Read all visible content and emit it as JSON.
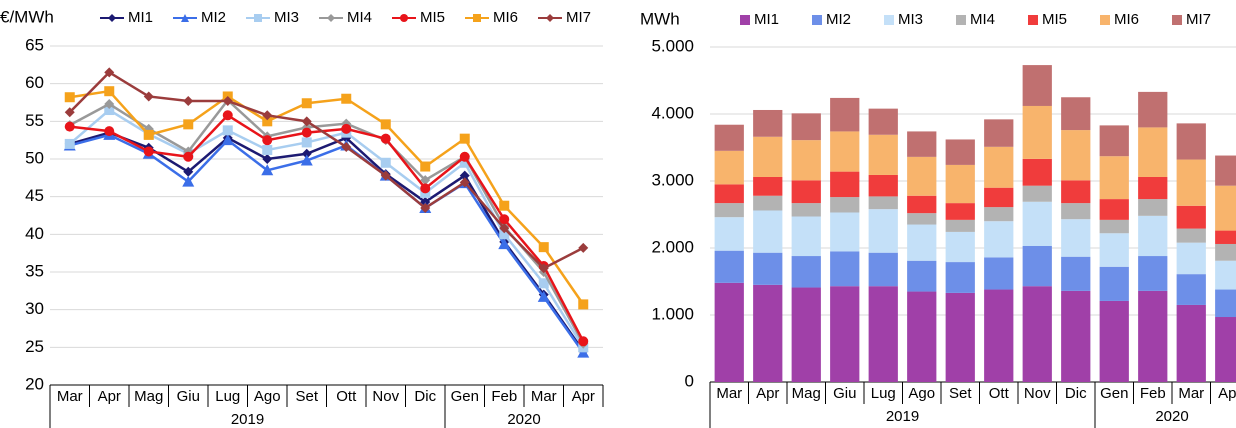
{
  "chart_data": [
    {
      "type": "line",
      "y_label": "€/MWh",
      "categories": [
        "Mar",
        "Apr",
        "Mag",
        "Giu",
        "Lug",
        "Ago",
        "Set",
        "Ott",
        "Nov",
        "Dic",
        "Gen",
        "Feb",
        "Mar",
        "Apr"
      ],
      "groups": [
        {
          "label": "2019",
          "count": 10
        },
        {
          "label": "2020",
          "count": 4
        }
      ],
      "ylim": [
        20,
        65
      ],
      "yticks": [
        20,
        25,
        30,
        35,
        40,
        45,
        50,
        55,
        60,
        65
      ],
      "grid": true,
      "series": [
        {
          "name": "MI1",
          "color": "#1c1a72",
          "marker": "diamond",
          "values": [
            52,
            53.5,
            51.5,
            48.3,
            52.8,
            50,
            50.7,
            52.8,
            48,
            44.3,
            47.8,
            39,
            32,
            24.5
          ]
        },
        {
          "name": "MI2",
          "color": "#3b6ee8",
          "marker": "triangle",
          "values": [
            51.8,
            53.2,
            50.7,
            47,
            52.5,
            48.5,
            49.8,
            51.8,
            47.8,
            43.5,
            46.8,
            38.7,
            31.7,
            24.3
          ]
        },
        {
          "name": "MI3",
          "color": "#a8cdf0",
          "marker": "square",
          "values": [
            52,
            56.5,
            53.3,
            50.7,
            53.8,
            51.2,
            52.2,
            53.5,
            49.5,
            45.5,
            49.5,
            40,
            33.5,
            25
          ]
        },
        {
          "name": "MI4",
          "color": "#999999",
          "marker": "diamond",
          "values": [
            54.5,
            57.3,
            54,
            51,
            57.8,
            53,
            54.2,
            54.7,
            52.5,
            47.2,
            50.3,
            41,
            35,
            25.5
          ]
        },
        {
          "name": "MI5",
          "color": "#e8141a",
          "marker": "circle",
          "values": [
            54.3,
            53.7,
            51,
            50.3,
            55.8,
            52.5,
            53.5,
            54,
            52.7,
            46.1,
            50.3,
            42,
            35.8,
            25.8
          ]
        },
        {
          "name": "MI6",
          "color": "#f5a21b",
          "marker": "square",
          "values": [
            58.2,
            59,
            53.2,
            54.6,
            58.3,
            55,
            57.4,
            58,
            54.6,
            49,
            52.7,
            43.8,
            38.3,
            30.7
          ]
        },
        {
          "name": "MI7",
          "color": "#9b3c3c",
          "marker": "diamond",
          "values": [
            56.2,
            61.5,
            58.3,
            57.7,
            57.7,
            55.8,
            55,
            51.6,
            47.8,
            43.5,
            46.9,
            40.8,
            35.5,
            38.2
          ]
        }
      ]
    },
    {
      "type": "bar",
      "stacked": true,
      "y_label": "MWh",
      "categories": [
        "Mar",
        "Apr",
        "Mag",
        "Giu",
        "Lug",
        "Ago",
        "Set",
        "Ott",
        "Nov",
        "Dic",
        "Gen",
        "Feb",
        "Mar",
        "Apr"
      ],
      "groups": [
        {
          "label": "2019",
          "count": 10
        },
        {
          "label": "2020",
          "count": 4
        }
      ],
      "ylim": [
        0,
        5000
      ],
      "yticks": [
        0,
        {
          "value": 1000,
          "label": "1.000"
        },
        {
          "value": 2000,
          "label": "2.000"
        },
        {
          "value": 3000,
          "label": "3.000"
        },
        {
          "value": 4000,
          "label": "4.000"
        },
        {
          "value": 5000,
          "label": "5.000"
        }
      ],
      "grid": true,
      "series": [
        {
          "name": "MI1",
          "color": "#a040a8",
          "values": [
            1480,
            1450,
            1410,
            1430,
            1430,
            1350,
            1330,
            1380,
            1430,
            1360,
            1210,
            1360,
            1150,
            970
          ]
        },
        {
          "name": "MI2",
          "color": "#6d8fe8",
          "values": [
            480,
            480,
            470,
            520,
            500,
            460,
            460,
            480,
            600,
            510,
            510,
            520,
            460,
            410
          ]
        },
        {
          "name": "MI3",
          "color": "#c4e0f8",
          "values": [
            500,
            630,
            590,
            580,
            650,
            540,
            450,
            540,
            660,
            560,
            500,
            600,
            470,
            430
          ]
        },
        {
          "name": "MI4",
          "color": "#b3b3b3",
          "values": [
            210,
            220,
            200,
            230,
            190,
            170,
            180,
            210,
            240,
            240,
            200,
            250,
            210,
            250
          ]
        },
        {
          "name": "MI5",
          "color": "#f03c3c",
          "values": [
            280,
            280,
            340,
            380,
            320,
            260,
            250,
            290,
            400,
            340,
            310,
            330,
            340,
            200
          ]
        },
        {
          "name": "MI6",
          "color": "#f8b46c",
          "values": [
            500,
            600,
            600,
            600,
            600,
            580,
            570,
            610,
            790,
            750,
            640,
            740,
            690,
            670
          ]
        },
        {
          "name": "MI7",
          "color": "#c07070",
          "values": [
            390,
            400,
            400,
            500,
            390,
            380,
            380,
            410,
            610,
            490,
            460,
            530,
            540,
            450
          ]
        }
      ]
    }
  ]
}
